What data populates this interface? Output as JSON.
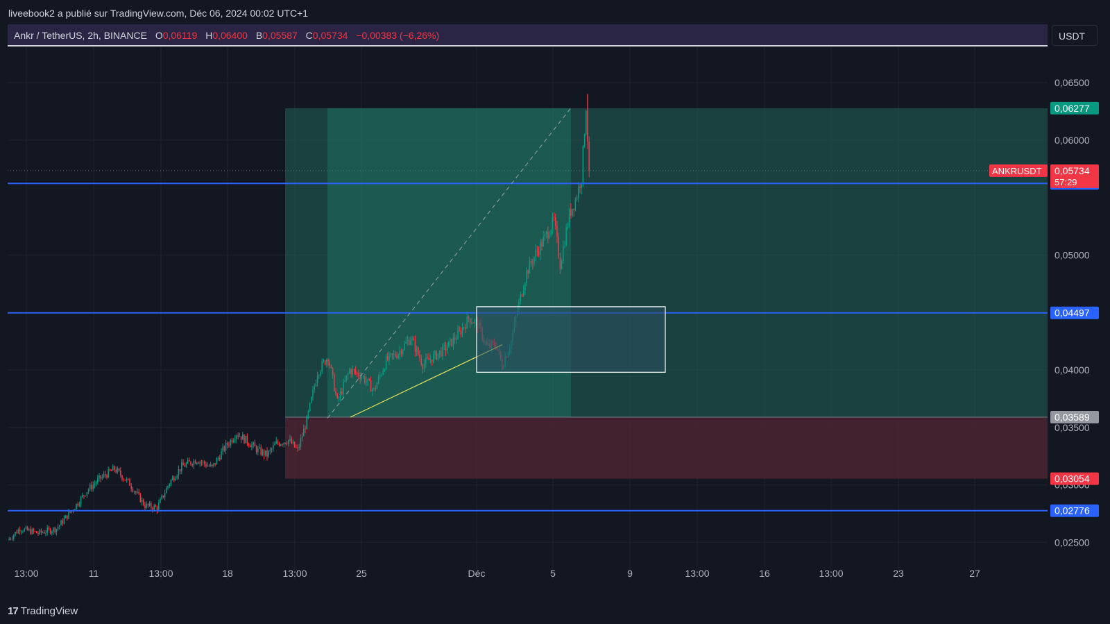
{
  "header": {
    "publisher_line": "liveebook2 a publié sur TradingView.com, Déc 06, 2024 00:02 UTC+1"
  },
  "legend": {
    "symbol": "Ankr / TetherUS, 2h, BINANCE",
    "o_label": "O",
    "o_value": "0,06119",
    "h_label": "H",
    "h_value": "0,06400",
    "b_label": "B",
    "b_value": "0,05587",
    "c_label": "C",
    "c_value": "0,05734",
    "change": "−0,00383 (−6,26%)"
  },
  "currency_button": "USDT",
  "footer": {
    "brand": "TradingView",
    "logo": "17"
  },
  "colors": {
    "background": "#131722",
    "up": "#089981",
    "down": "#f23645",
    "horizontal_line": "#2962ff",
    "profit_zone": "#1e5b52",
    "loss_zone": "#4a2430",
    "rect_fill": "#2b5163",
    "trend_line": "#e8e15a"
  },
  "chart_data": {
    "type": "candlestick",
    "symbol": "ANKRUSDT",
    "interval": "2h",
    "x_ticks": [
      "13:00",
      "11",
      "13:00",
      "18",
      "13:00",
      "25",
      "Déc",
      "5",
      "9",
      "13:00",
      "16",
      "13:00",
      "23",
      "27"
    ],
    "y_ticks": [
      "0,06500",
      "0,06000",
      "0,05000",
      "0,04000",
      "0,03500",
      "0,03000",
      "0,02500"
    ],
    "ylim": [
      0.0235,
      0.0675
    ],
    "grid": true,
    "price_path": [
      [
        0,
        0.0252
      ],
      [
        8,
        0.0262
      ],
      [
        20,
        0.0258
      ],
      [
        32,
        0.0262
      ],
      [
        44,
        0.0281
      ],
      [
        52,
        0.0295
      ],
      [
        60,
        0.0305
      ],
      [
        70,
        0.0314
      ],
      [
        80,
        0.0301
      ],
      [
        90,
        0.0282
      ],
      [
        98,
        0.028
      ],
      [
        106,
        0.0302
      ],
      [
        114,
        0.0316
      ],
      [
        124,
        0.0322
      ],
      [
        134,
        0.0315
      ],
      [
        142,
        0.0332
      ],
      [
        150,
        0.0345
      ],
      [
        158,
        0.0337
      ],
      [
        164,
        0.033
      ],
      [
        170,
        0.0326
      ],
      [
        176,
        0.0336
      ],
      [
        184,
        0.0339
      ],
      [
        190,
        0.033
      ],
      [
        196,
        0.0356
      ],
      [
        203,
        0.0398
      ],
      [
        210,
        0.0412
      ],
      [
        216,
        0.0372
      ],
      [
        224,
        0.04
      ],
      [
        232,
        0.0395
      ],
      [
        240,
        0.0382
      ],
      [
        248,
        0.0408
      ],
      [
        256,
        0.0415
      ],
      [
        264,
        0.0428
      ],
      [
        272,
        0.0405
      ],
      [
        280,
        0.0412
      ],
      [
        288,
        0.042
      ],
      [
        296,
        0.0432
      ],
      [
        302,
        0.0445
      ],
      [
        308,
        0.044
      ],
      [
        314,
        0.042
      ],
      [
        320,
        0.0422
      ],
      [
        324,
        0.0404
      ],
      [
        330,
        0.0425
      ],
      [
        334,
        0.0452
      ],
      [
        340,
        0.0485
      ],
      [
        346,
        0.0501
      ],
      [
        352,
        0.0515
      ],
      [
        358,
        0.053
      ],
      [
        362,
        0.0492
      ],
      [
        368,
        0.0535
      ],
      [
        372,
        0.0548
      ],
      [
        376,
        0.0568
      ],
      [
        379,
        0.063
      ],
      [
        381,
        0.0573
      ]
    ],
    "horizontal_lines": [
      {
        "price": 0.05623,
        "label": "0,05623"
      },
      {
        "price": 0.04497,
        "label": "0,04497"
      },
      {
        "price": 0.02776,
        "label": "0,02776"
      }
    ],
    "position": {
      "take_profit": {
        "price": 0.06277,
        "label": "0,06277"
      },
      "entry": {
        "price": 0.03589,
        "label": "0,03589"
      },
      "stop_loss": {
        "price": 0.03054,
        "label": "0,03054"
      }
    },
    "current_price": {
      "symbol": "ANKRUSDT",
      "price": 0.05734,
      "label": "0,05734",
      "countdown": "57:29"
    },
    "annotations": {
      "rectangle": {
        "price_top": 0.0455,
        "price_bottom": 0.0398
      },
      "trend_line": {
        "price_start": 0.03589,
        "price_end": 0.0422
      },
      "dashed_line": {
        "price_start": 0.0358,
        "price_end": 0.0628
      }
    }
  }
}
